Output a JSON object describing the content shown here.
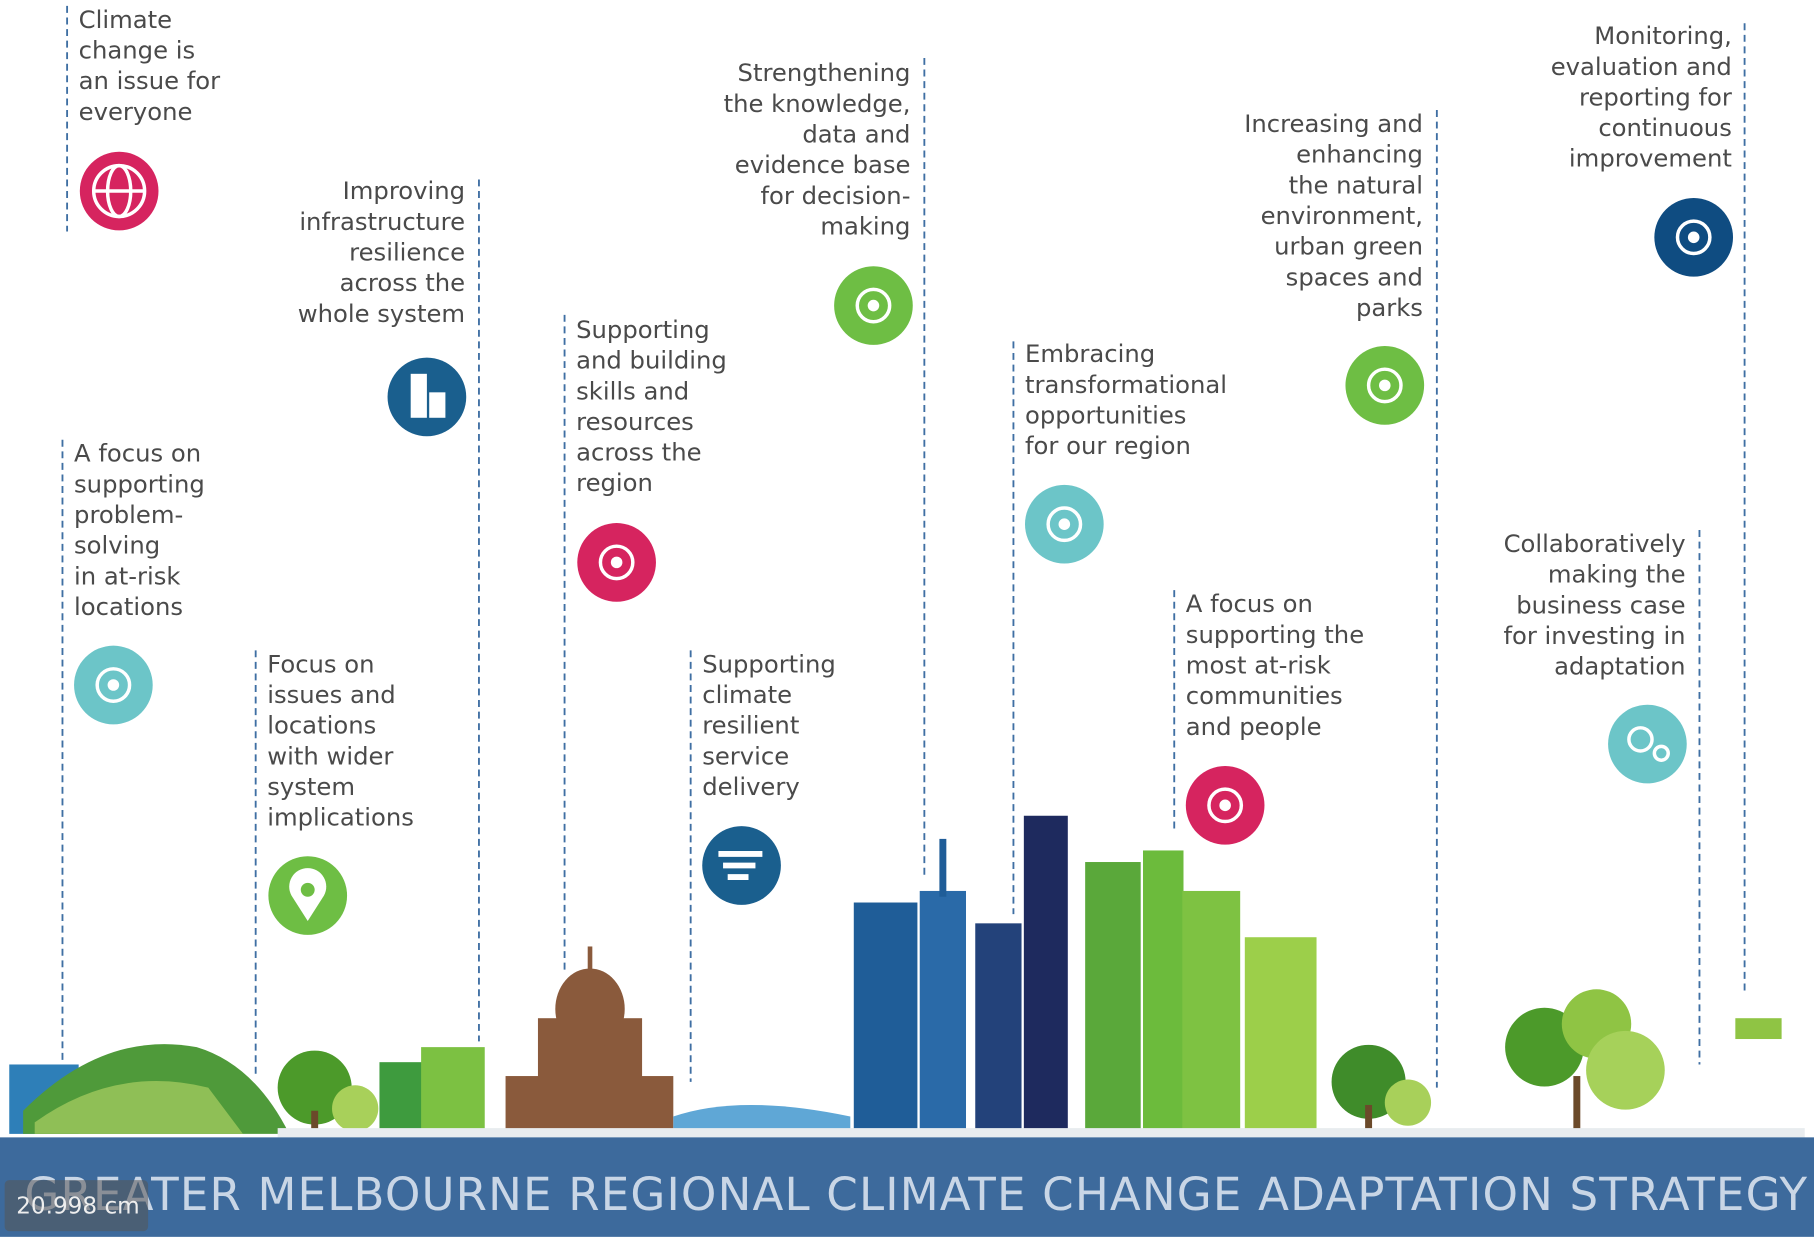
{
  "items": [
    {
      "lines": [
        "Climate",
        "change is",
        "an issue for",
        "everyone"
      ]
    },
    {
      "lines": [
        "Improving",
        "infrastructure",
        "resilience",
        "across the",
        "whole system"
      ]
    },
    {
      "lines": [
        "Strengthening",
        "the knowledge,",
        "data and",
        "evidence base",
        "for decision-",
        "making"
      ]
    },
    {
      "lines": [
        "Monitoring,",
        "evaluation and",
        "reporting for",
        "continuous",
        "improvement"
      ]
    },
    {
      "lines": [
        "Increasing and",
        "enhancing",
        "the natural",
        "environment,",
        "urban green",
        "spaces and",
        "parks"
      ]
    },
    {
      "lines": [
        "Supporting",
        "and building",
        "skills and",
        "resources",
        "across the",
        "region"
      ]
    },
    {
      "lines": [
        "Embracing",
        "transformational",
        "opportunities",
        "for our region"
      ]
    },
    {
      "lines": [
        "A focus on",
        "supporting",
        "problem-",
        "solving",
        "in at-risk",
        "locations"
      ]
    },
    {
      "lines": [
        "Focus on",
        "issues and",
        "locations",
        "with wider",
        "system",
        "implications"
      ]
    },
    {
      "lines": [
        "Supporting",
        "climate",
        "resilient",
        "service",
        "delivery"
      ]
    },
    {
      "lines": [
        "A focus on",
        "supporting the",
        "most at-risk",
        "communities",
        "and people"
      ]
    },
    {
      "lines": [
        "Collaboratively",
        "making the",
        "business case",
        "for investing in",
        "adaptation"
      ]
    }
  ],
  "banner": {
    "title": "GREATER MELBOURNE REGIONAL CLIMATE CHANGE ADAPTATION STRATEGY"
  },
  "ruler_label": "20.998 cm"
}
